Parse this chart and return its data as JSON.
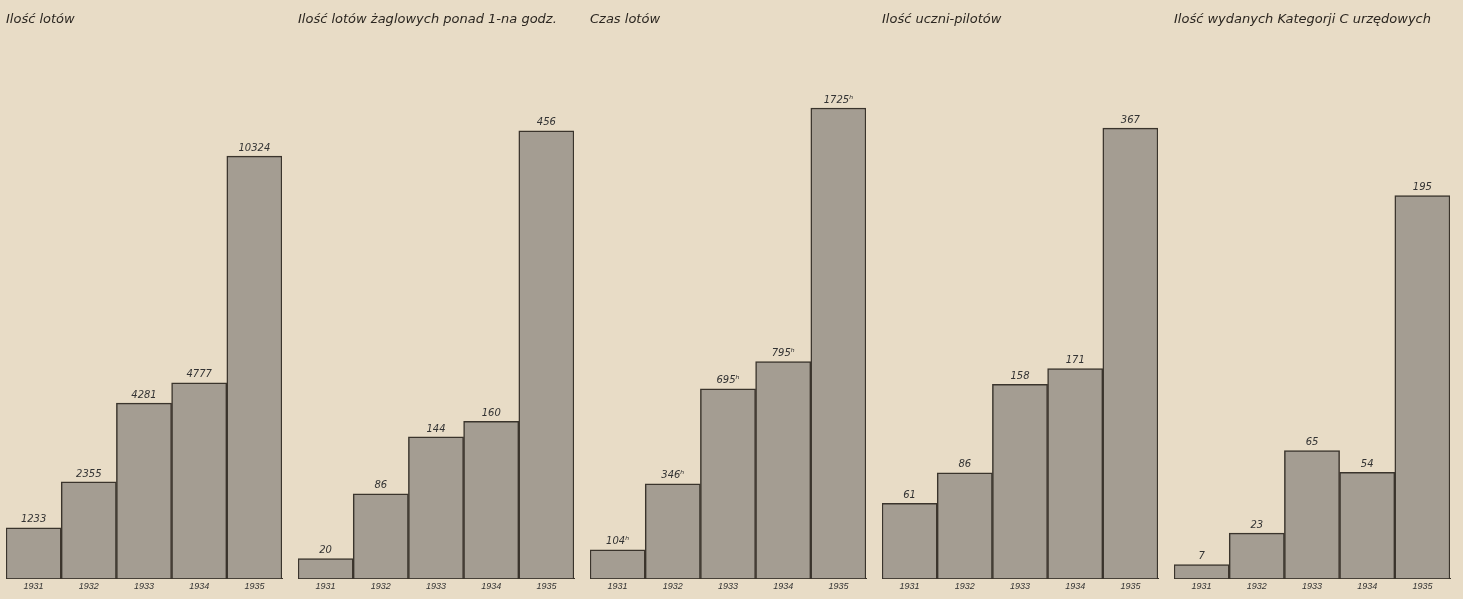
{
  "chart_data": [
    {
      "type": "bar",
      "title": "Ilość lotów",
      "categories": [
        "1931",
        "1932",
        "1933",
        "1934",
        "1935"
      ],
      "values": [
        1233,
        2355,
        4281,
        4777,
        10324
      ],
      "color": "#a49d92",
      "data_labels": true,
      "grid": false,
      "legend": false
    },
    {
      "type": "bar",
      "title": "Ilość lotów żaglowych ponad 1-na godz.",
      "categories": [
        "1931",
        "1932",
        "1933",
        "1934",
        "1935"
      ],
      "values": [
        20,
        86,
        144,
        160,
        456
      ],
      "color": "#a49d92",
      "data_labels": true,
      "grid": false,
      "legend": false
    },
    {
      "type": "bar",
      "title": "Czas lotów",
      "categories": [
        "1931",
        "1932",
        "1933",
        "1934",
        "1935"
      ],
      "values": [
        104,
        346,
        695,
        795,
        1725
      ],
      "value_labels": [
        "104ʰ",
        "346ʰ",
        "695ʰ",
        "795ʰ",
        "1725ʰ"
      ],
      "color": "#a49d92",
      "grid": false,
      "legend": false
    },
    {
      "type": "bar",
      "title": "Ilość uczni-pilotów",
      "categories": [
        "1931",
        "1932",
        "1933",
        "1934",
        "1935"
      ],
      "values": [
        61,
        86,
        158,
        171,
        367
      ],
      "color": "#a49d92",
      "data_labels": true,
      "grid": false,
      "legend": false
    },
    {
      "type": "bar",
      "title": "Ilość wydanych Kategorji C urzędowych",
      "categories": [
        "1931",
        "1932",
        "1933",
        "1934",
        "1935"
      ],
      "values": [
        7,
        23,
        65,
        54,
        195
      ],
      "color": "#a49d92",
      "data_labels": true,
      "grid": false,
      "legend": false
    }
  ]
}
